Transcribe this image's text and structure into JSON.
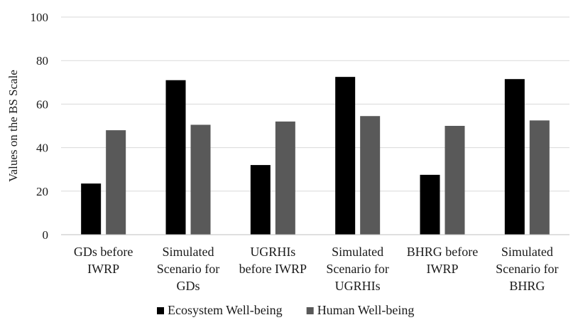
{
  "chart_data": {
    "type": "bar",
    "ylabel": "Values on the BS Scale",
    "ylim": [
      0,
      100
    ],
    "yticks": [
      0,
      20,
      40,
      60,
      80,
      100
    ],
    "grid": true,
    "legend_position": "bottom",
    "categories": [
      [
        "GDs before",
        "IWRP"
      ],
      [
        "Simulated",
        "Scenario for",
        "GDs"
      ],
      [
        "UGRHIs",
        "before IWRP"
      ],
      [
        "Simulated",
        "Scenario for",
        "UGRHIs"
      ],
      [
        "BHRG before",
        "IWRP"
      ],
      [
        "Simulated",
        "Scenario for",
        "BHRG"
      ]
    ],
    "series": [
      {
        "name": "Ecosystem Well-being",
        "color": "#000000",
        "values": [
          23.5,
          71,
          32,
          72.5,
          27.5,
          71.5
        ]
      },
      {
        "name": "Human Well-being",
        "color": "#595959",
        "values": [
          48,
          50.5,
          52,
          54.5,
          50,
          52.5
        ]
      }
    ]
  }
}
